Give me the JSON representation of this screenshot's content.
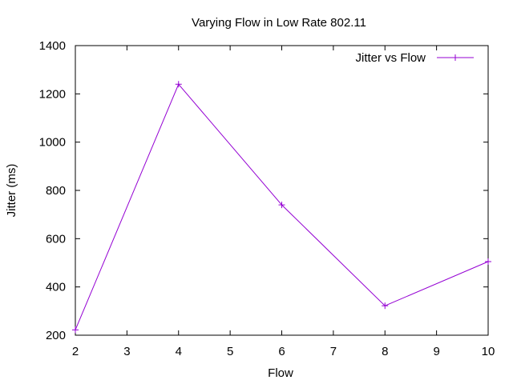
{
  "chart_data": {
    "type": "line",
    "title": "Varying Flow in Low Rate 802.11",
    "xlabel": "Flow",
    "ylabel": "Jitter (ms)",
    "xlim": [
      2,
      10
    ],
    "ylim": [
      200,
      1400
    ],
    "xticks": [
      2,
      3,
      4,
      5,
      6,
      7,
      8,
      9,
      10
    ],
    "yticks": [
      200,
      400,
      600,
      800,
      1000,
      1200,
      1400
    ],
    "grid": false,
    "legend_position": "top-right",
    "series": [
      {
        "name": "Jitter vs Flow",
        "color": "#9400d3",
        "marker": "plus",
        "x": [
          2,
          4,
          6,
          8,
          10
        ],
        "y": [
          222,
          1240,
          740,
          322,
          505
        ]
      }
    ]
  }
}
